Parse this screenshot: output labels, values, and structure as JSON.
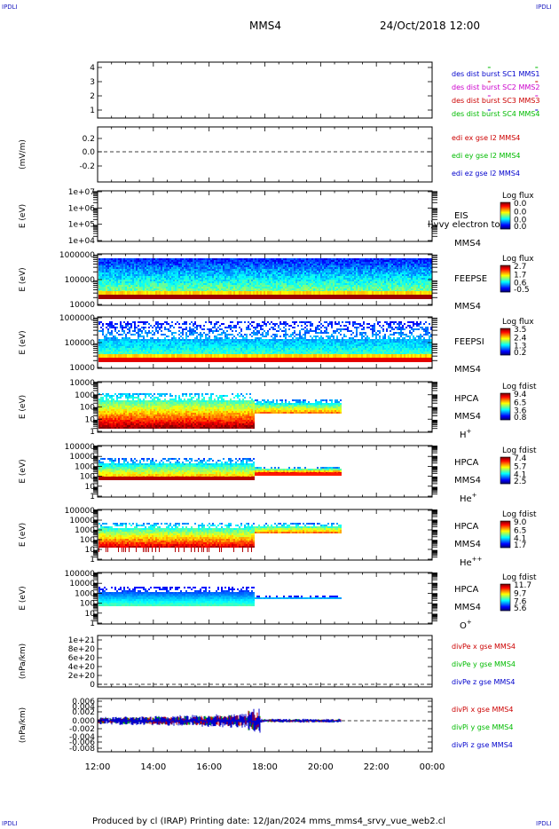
{
  "corners": {
    "tl": "IPDLI",
    "tr": "IPDLI",
    "bl": "IPDLI",
    "br": "IPDLI"
  },
  "header": {
    "spacecraft": "MMS4",
    "date": "24/Oct/2018 12:00"
  },
  "footer": "Produced by cl (IRAP)   Printing date: 12/Jan/2024   mms_mms4_srvy_vue_web2.cl",
  "chart_data": {
    "type": "multi-panel-timeseries",
    "x_tick_labels": [
      "12:00",
      "14:00",
      "16:00",
      "18:00",
      "20:00",
      "22:00",
      "00:00"
    ],
    "panels": [
      {
        "id": "burst",
        "type": "scatter",
        "ytick_labels": [
          "4",
          "3",
          "2",
          "1"
        ],
        "legend": [
          {
            "text": "des dist burst SC1 MMS1",
            "color": "#0000cc"
          },
          {
            "text": "des dist burst SC2 MMS2",
            "color": "#cc00cc"
          },
          {
            "text": "des dist burst SC3 MMS3",
            "color": "#cc0000"
          },
          {
            "text": "des dist burst SC4 MMS4",
            "color": "#00bb00"
          }
        ],
        "marks_x_hours": [
          14.0,
          15.7
        ]
      },
      {
        "id": "edi",
        "type": "line",
        "ylabel": "(mV/m)",
        "ytick_labels": [
          "0.2",
          "0.0",
          "-0.2"
        ],
        "legend": [
          {
            "text": "edi ex gse l2 MMS4",
            "color": "#cc0000"
          },
          {
            "text": "edi ey gse l2 MMS4",
            "color": "#00bb00"
          },
          {
            "text": "edi ez gse l2 MMS4",
            "color": "#0000cc"
          }
        ]
      },
      {
        "id": "eis",
        "type": "heatmap",
        "ylabel": "E (eV)",
        "ytick_labels": [
          "1e+07",
          "1e+06",
          "1e+05",
          "1e+04"
        ],
        "instrument": [
          "EIS",
          "MMS4"
        ],
        "overlay": "l)vvy electron to",
        "cbar_title": "Log flux",
        "cbar_ticks": [
          "0.0",
          "0.0",
          "0.0",
          "0.0"
        ]
      },
      {
        "id": "feepse",
        "type": "heatmap",
        "ylabel": "E (eV)",
        "ytick_labels": [
          "1000000",
          "100000",
          "10000"
        ],
        "instrument": [
          "FEEPSE",
          "MMS4"
        ],
        "cbar_title": "Log flux",
        "cbar_ticks": [
          "2.7",
          "1.7",
          "0.6",
          "-0.5"
        ],
        "data_x_hours": [
          0,
          12
        ]
      },
      {
        "id": "feepsi",
        "type": "heatmap",
        "ylabel": "E (eV)",
        "ytick_labels": [
          "1000000",
          "100000",
          "10000"
        ],
        "instrument": [
          "FEEPSI",
          "MMS4"
        ],
        "cbar_title": "Log flux",
        "cbar_ticks": [
          "3.5",
          "2.4",
          "1.3",
          "0.2"
        ],
        "data_x_hours": [
          0,
          12
        ]
      },
      {
        "id": "hpca_h",
        "type": "heatmap",
        "ylabel": "E (eV)",
        "ytick_labels": [
          "10000",
          "1000",
          "100",
          "10",
          "1"
        ],
        "instrument": [
          "HPCA",
          "MMS4"
        ],
        "species": "H",
        "species_sup": "+",
        "cbar_title": "Log fdist",
        "cbar_ticks": [
          "9.4",
          "6.5",
          "3.6",
          "0.8"
        ],
        "data_x_hours": [
          0,
          8.75
        ],
        "mode_change_hours": 5.6
      },
      {
        "id": "hpca_he",
        "type": "heatmap",
        "ylabel": "E (eV)",
        "ytick_labels": [
          "100000",
          "10000",
          "1000",
          "100",
          "10",
          "1"
        ],
        "instrument": [
          "HPCA",
          "MMS4"
        ],
        "species": "He",
        "species_sup": "+",
        "cbar_title": "Log fdist",
        "cbar_ticks": [
          "7.4",
          "5.7",
          "4.1",
          "2.5"
        ],
        "data_x_hours": [
          0,
          8.75
        ],
        "mode_change_hours": 5.6
      },
      {
        "id": "hpca_hepp",
        "type": "heatmap",
        "ylabel": "E (eV)",
        "ytick_labels": [
          "100000",
          "10000",
          "1000",
          "100",
          "10",
          "1"
        ],
        "instrument": [
          "HPCA",
          "MMS4"
        ],
        "species": "He",
        "species_sup": "++",
        "cbar_title": "Log fdist",
        "cbar_ticks": [
          "9.0",
          "6.5",
          "4.1",
          "1.7"
        ],
        "data_x_hours": [
          0,
          8.75
        ],
        "mode_change_hours": 5.6
      },
      {
        "id": "hpca_o",
        "type": "heatmap",
        "ylabel": "E (eV)",
        "ytick_labels": [
          "100000",
          "10000",
          "1000",
          "100",
          "10",
          "1"
        ],
        "instrument": [
          "HPCA",
          "MMS4"
        ],
        "species": "O",
        "species_sup": "+",
        "cbar_title": "Log fdist",
        "cbar_ticks": [
          "11.7",
          "9.7",
          "7.6",
          "5.6"
        ],
        "data_x_hours": [
          0,
          8.75
        ],
        "mode_change_hours": 5.6
      },
      {
        "id": "divpe",
        "type": "line",
        "ylabel": "(nPa/km)",
        "ytick_labels": [
          "1e+21",
          "8e+20",
          "6e+20",
          "4e+20",
          "2e+20",
          "0"
        ],
        "legend": [
          {
            "text": "divPe x gse MMS4",
            "color": "#cc0000"
          },
          {
            "text": "divPe y gse MMS4",
            "color": "#00bb00"
          },
          {
            "text": "divPe z gse MMS4",
            "color": "#0000cc"
          }
        ]
      },
      {
        "id": "divpi",
        "type": "line",
        "ylabel": "(nPa/km)",
        "ytick_labels": [
          "0.006",
          "0.004",
          "0.002",
          "0.000",
          "-0.002",
          "-0.004",
          "-0.006",
          "-0.008"
        ],
        "legend": [
          {
            "text": "divPi x gse MMS4",
            "color": "#cc0000"
          },
          {
            "text": "divPi y gse MMS4",
            "color": "#00bb00"
          },
          {
            "text": "divPi z gse MMS4",
            "color": "#0000cc"
          }
        ],
        "data_x_hours": [
          0,
          8.75
        ]
      }
    ]
  }
}
